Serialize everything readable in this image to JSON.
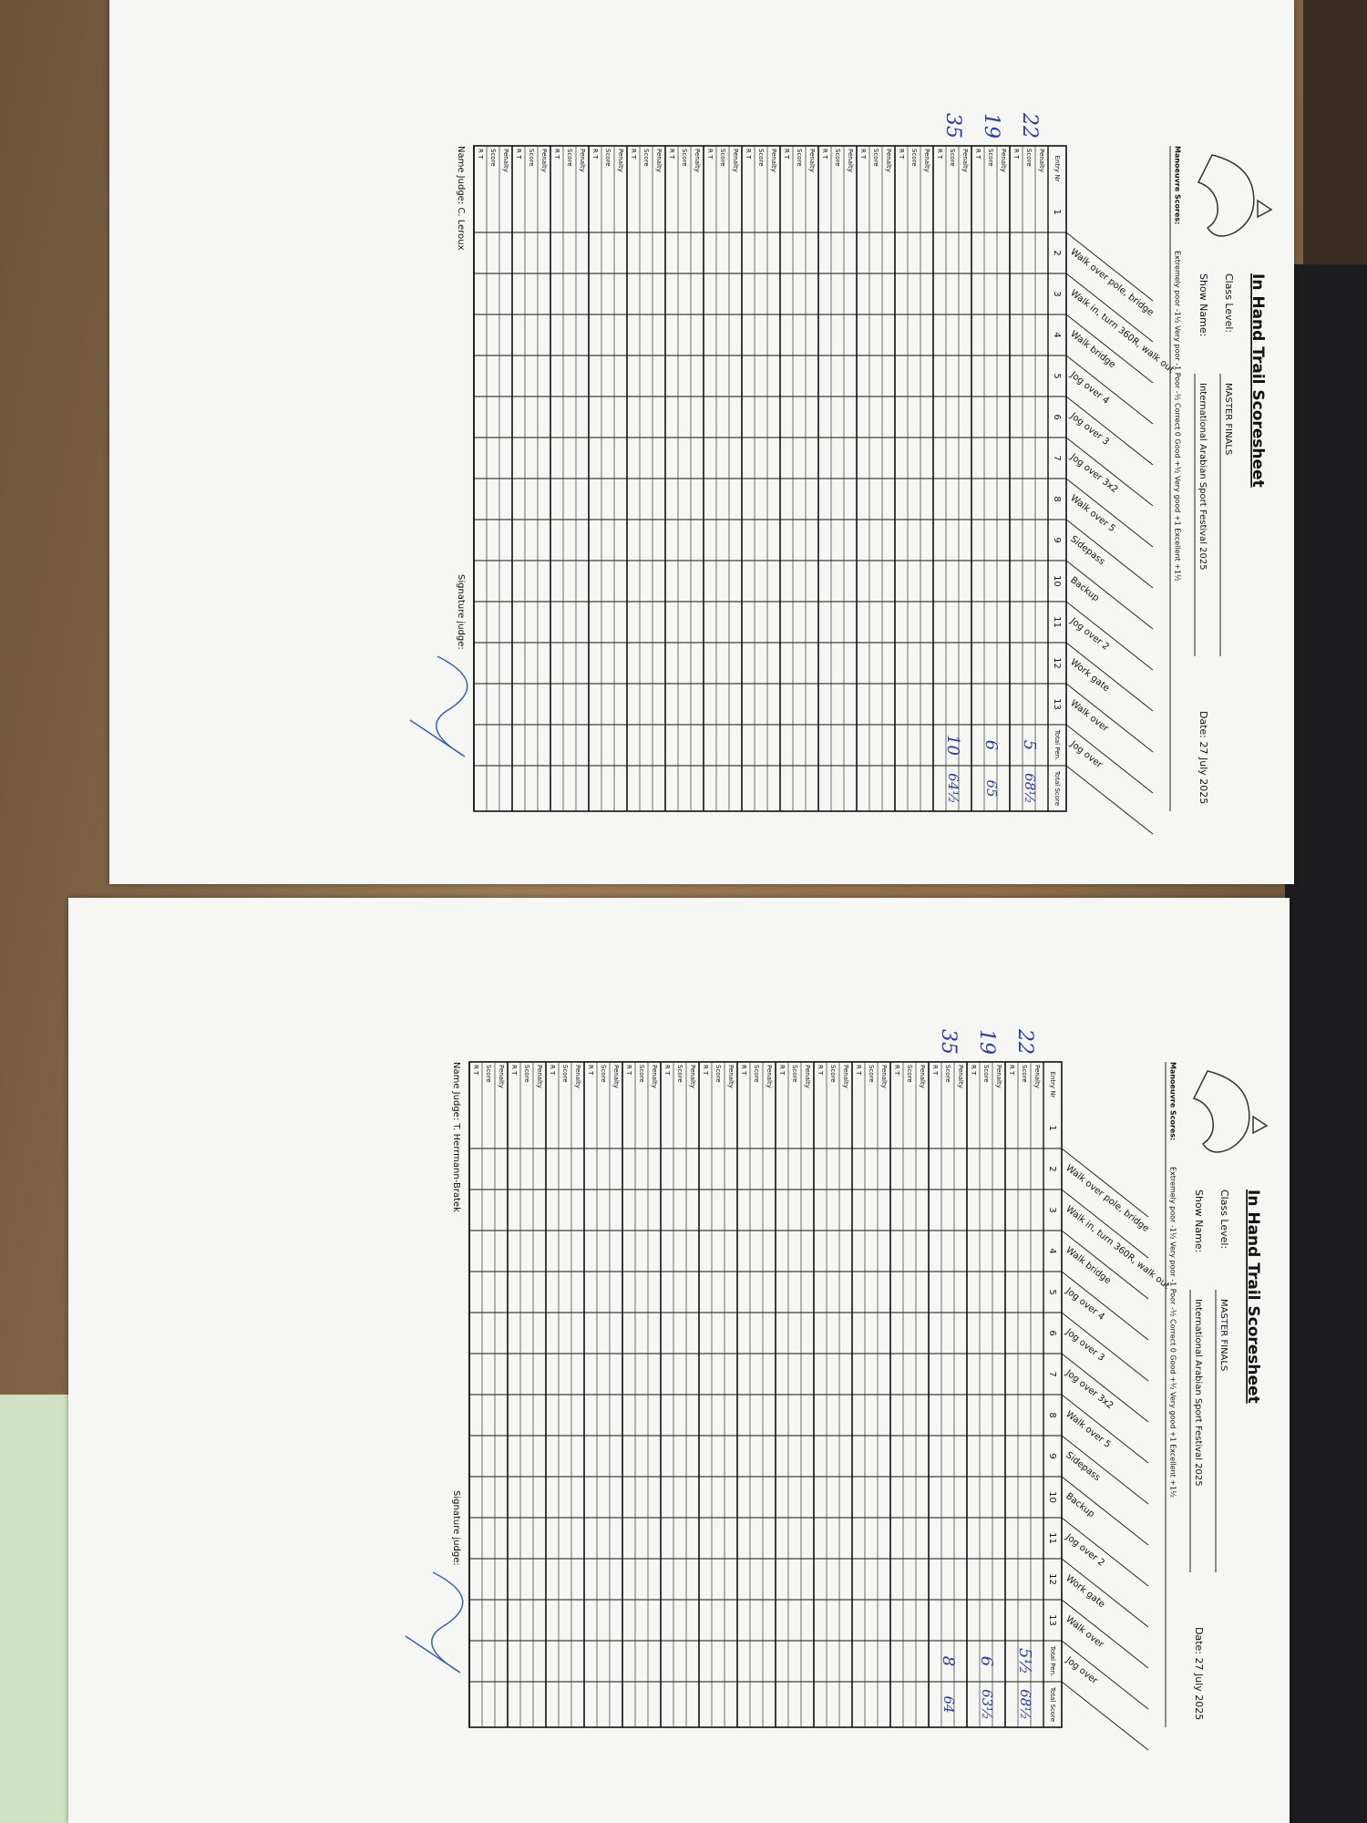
{
  "sheets": [
    {
      "title": "In Hand Trail Scoresheet",
      "class_level_label": "Class Level:",
      "class_level": "MASTER FINALS",
      "show_name_label": "Show Name:",
      "show_name": "International Arabian Sport Festival 2025",
      "date": "Date: 27 July 2025",
      "manoeuvre_label": "Manoeuvre Scores:",
      "scale": "Extremely poor -1½   Very poor -1   Poor -½   Correct 0   Good +½   Very good +1   Excellent +1½",
      "obstacles": [
        "Walk over pole, bridge",
        "Walk in, turn 360R, walk out",
        "Walk bridge",
        "Jog over 4",
        "Jog over 3",
        "Jog over 3x2",
        "Walk over 5",
        "Sidepass",
        "Backup",
        "Jog over 2",
        "Work gate",
        "Walk over",
        "Jog over"
      ],
      "columns": [
        "Entry Nr",
        "1",
        "2",
        "3",
        "4",
        "5",
        "6",
        "7",
        "8",
        "9",
        "10",
        "11",
        "12",
        "13",
        "Total Pen.",
        "Total Score"
      ],
      "row_labels": [
        "Penalty",
        "Score",
        "R T"
      ],
      "entries": [
        {
          "entry": "22",
          "total_pen": "5",
          "total_score": "68½"
        },
        {
          "entry": "19",
          "total_pen": "6",
          "total_score": "65"
        },
        {
          "entry": "35",
          "total_pen": "10",
          "total_score": "64½"
        }
      ],
      "judge": "Name Judge: C. Leroux",
      "signature": "Signature judge:"
    },
    {
      "title": "In Hand Trail Scoresheet",
      "class_level_label": "Class Level:",
      "class_level": "MASTER FINALS",
      "show_name_label": "Show Name:",
      "show_name": "International Arabian Sport Festival 2025",
      "date": "Date: 27 July 2025",
      "manoeuvre_label": "Manoeuvre Scores:",
      "scale": "Extremely poor -1½   Very poor -1   Poor -½   Correct 0   Good +½   Very good +1   Excellent +1½",
      "obstacles": [
        "Walk over pole, bridge",
        "Walk in, turn 360R, walk out",
        "Walk bridge",
        "Jog over 4",
        "Jog over 3",
        "Jog over 3x2",
        "Walk over 5",
        "Sidepass",
        "Backup",
        "Jog over 2",
        "Work gate",
        "Walk over",
        "Jog over"
      ],
      "columns": [
        "Entry Nr",
        "1",
        "2",
        "3",
        "4",
        "5",
        "6",
        "7",
        "8",
        "9",
        "10",
        "11",
        "12",
        "13",
        "Total Pen.",
        "Total Score"
      ],
      "row_labels": [
        "Penalty",
        "Score",
        "R T"
      ],
      "entries": [
        {
          "entry": "22",
          "total_pen": "5½",
          "total_score": "68½"
        },
        {
          "entry": "19",
          "total_pen": "6",
          "total_score": "63½"
        },
        {
          "entry": "35",
          "total_pen": "8",
          "total_score": "64"
        }
      ],
      "judge": "Name Judge: T. Herrmann-Bratek",
      "signature": "Signature judge:"
    }
  ]
}
